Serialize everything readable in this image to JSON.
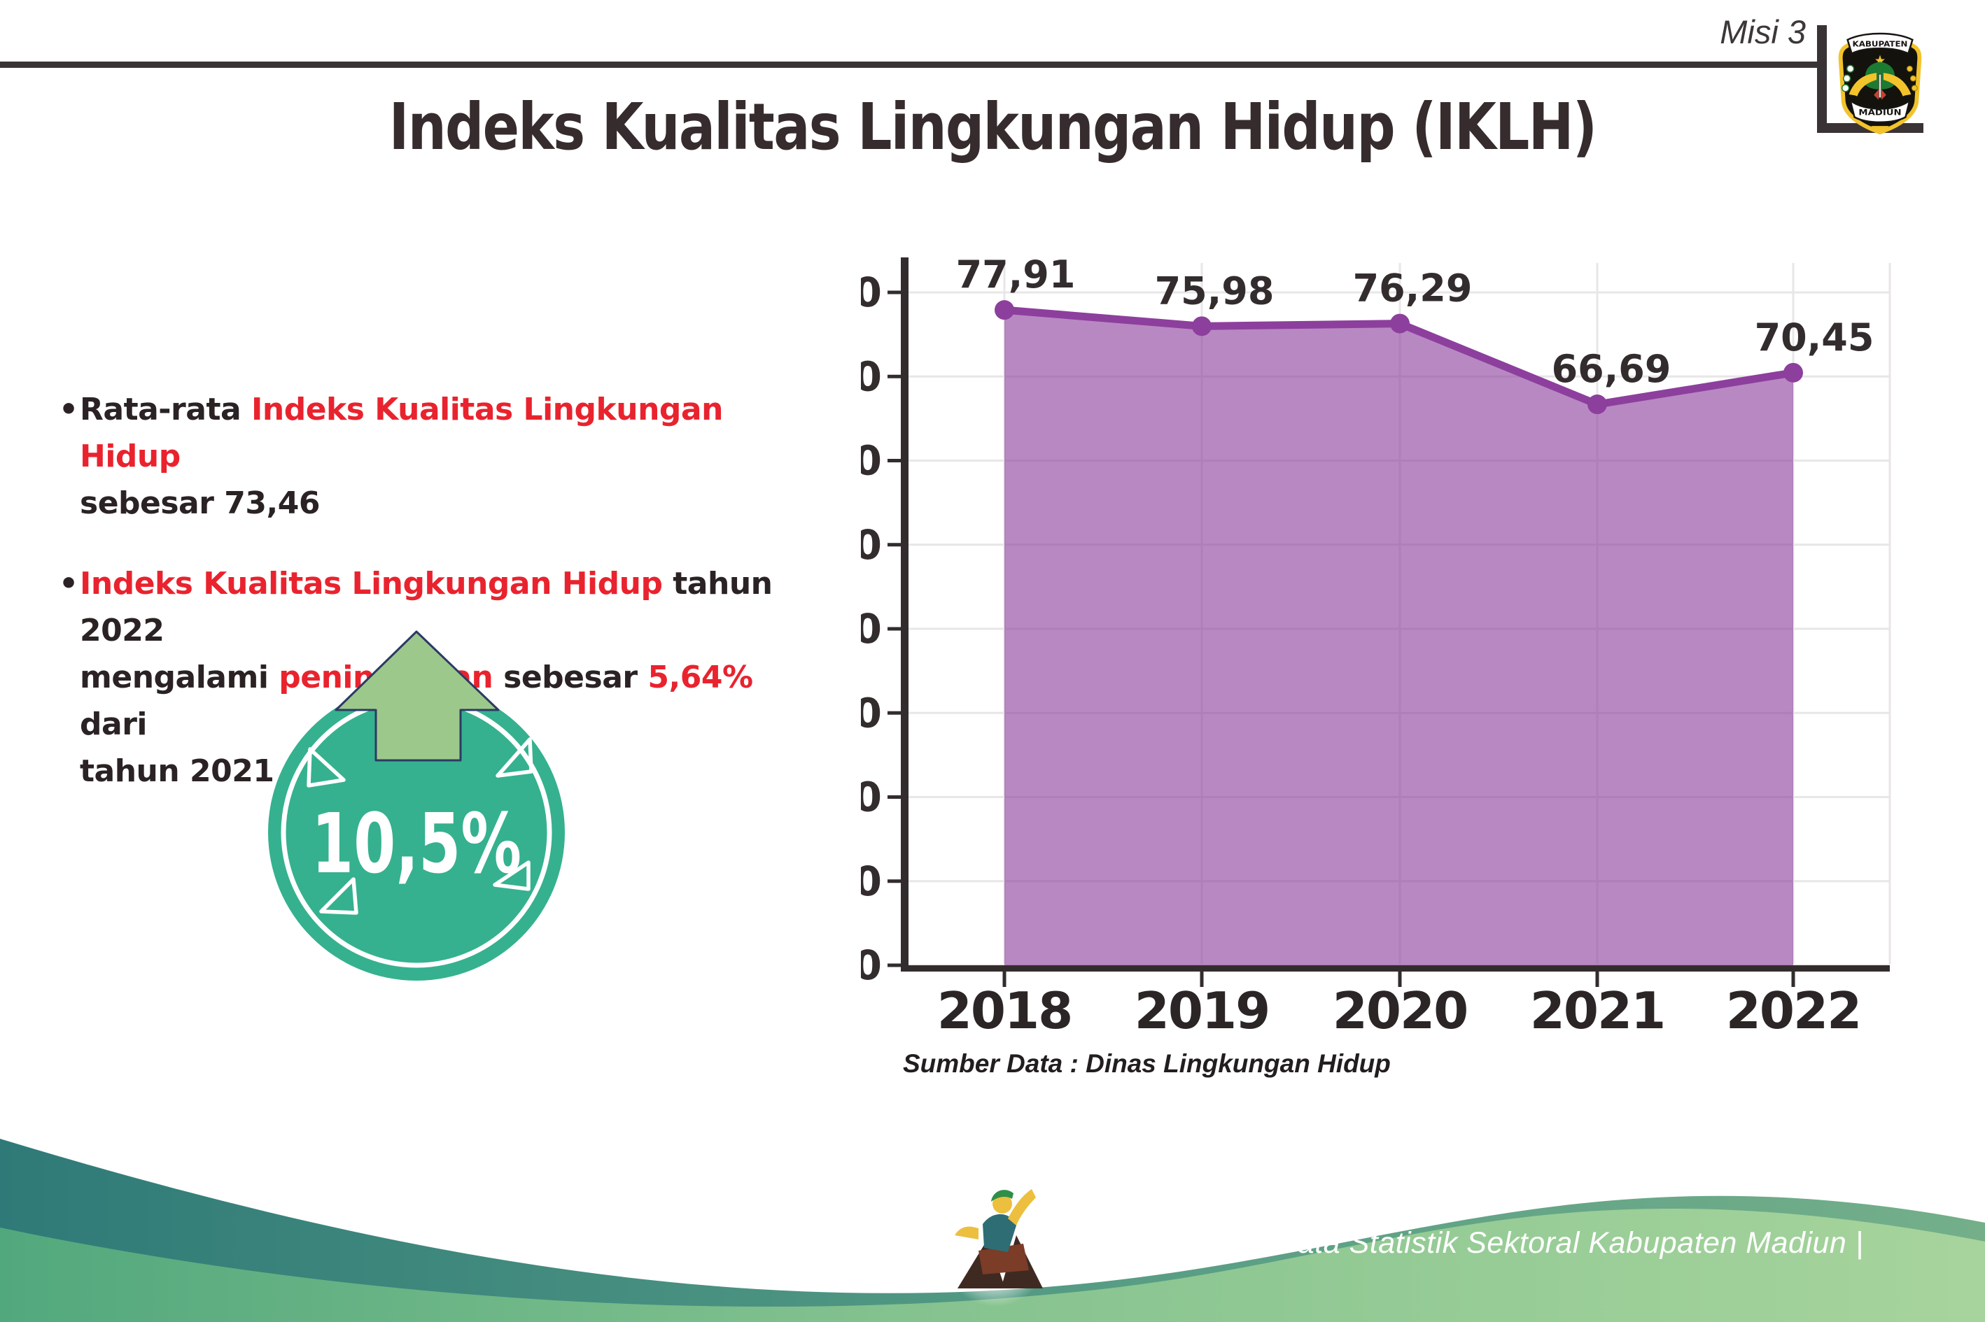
{
  "header": {
    "misi_label": "Misi 3",
    "title": "Indeks Kualitas Lingkungan Hidup (IKLH)"
  },
  "logo": {
    "banner_top": "KABUPATEN",
    "banner_bottom": "MADIUN"
  },
  "bullets": {
    "marker": "•",
    "b1": {
      "s1": "Rata-rata ",
      "s2": "Indeks Kualitas Lingkungan Hidup",
      "s3": "sebesar 73,46"
    },
    "b2": {
      "s1": "Indeks Kualitas Lingkungan Hidup",
      "s2": " tahun 2022",
      "s3": "mengalami ",
      "s4": "peningkatan",
      "s5": " sebesar ",
      "s6": "5,64%",
      "s7": " dari",
      "s8": "tahun 2021"
    }
  },
  "badge": {
    "value": "10,5%",
    "direction": "up"
  },
  "chart_data": {
    "type": "area",
    "categories": [
      "2018",
      "2019",
      "2020",
      "2021",
      "2022"
    ],
    "series": [
      {
        "name": "IKLH",
        "values": [
          77.91,
          75.98,
          76.29,
          66.69,
          70.45
        ]
      }
    ],
    "value_labels": [
      "77,91",
      "75,98",
      "76,29",
      "66,69",
      "70,45"
    ],
    "ylim": [
      0,
      80
    ],
    "ytick_step": 10,
    "grid": true,
    "legend": "none",
    "source": "Sumber Data : Dinas Lingkungan Hidup"
  },
  "footer": {
    "credit": "Media Infografis Data Statistik Sektoral Kabupaten Madiun |"
  },
  "colors": {
    "accent_red": "#e9232e",
    "text_dark": "#362c2d",
    "badge_teal": "#35b18f",
    "badge_arrow_green": "#9cc98b",
    "badge_arrow_outline": "#2d3a63",
    "chart_line_purple": "#8d3f9d",
    "chart_fill_purple": "#b487bf",
    "grid_gray": "#e8e6e7",
    "axis_dark": "#332c2d",
    "footer_teal": "#2f7a78",
    "footer_green": "#84c28f"
  }
}
